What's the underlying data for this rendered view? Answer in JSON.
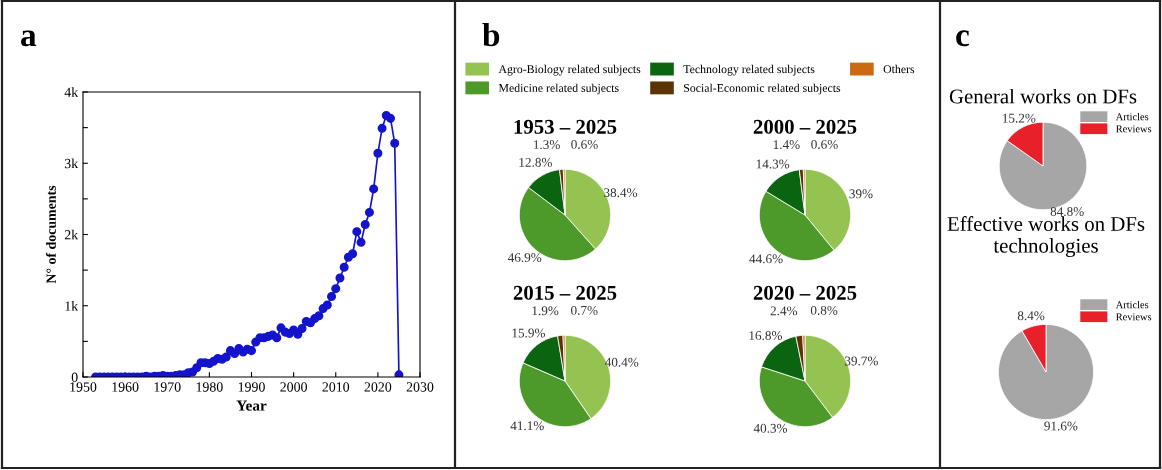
{
  "chart_data": [
    {
      "type": "line",
      "xlabel": "Year",
      "ylabel": "N° of documents",
      "annotations": [
        "a"
      ],
      "marker": "circle",
      "line_style": "solid",
      "grid": false,
      "xlim": [
        1950,
        2030
      ],
      "xticks": [
        1950,
        1960,
        1970,
        1980,
        1990,
        2000,
        2010,
        2020,
        2030
      ],
      "ylim": [
        0,
        4000
      ],
      "yticks": [
        {
          "value": 0,
          "label": "0"
        },
        {
          "value": 500,
          "label": null
        },
        {
          "value": 1000,
          "label": "1k"
        },
        {
          "value": 1500,
          "label": null
        },
        {
          "value": 2000,
          "label": "2k"
        },
        {
          "value": 2500,
          "label": null
        },
        {
          "value": 3000,
          "label": "3k"
        },
        {
          "value": 3500,
          "label": null
        },
        {
          "value": 4000,
          "label": "4k"
        }
      ],
      "x": [
        1953,
        1954,
        1955,
        1956,
        1957,
        1958,
        1959,
        1960,
        1961,
        1962,
        1963,
        1964,
        1965,
        1966,
        1967,
        1968,
        1969,
        1970,
        1971,
        1972,
        1973,
        1974,
        1975,
        1976,
        1977,
        1978,
        1979,
        1980,
        1981,
        1982,
        1983,
        1984,
        1985,
        1986,
        1987,
        1988,
        1989,
        1990,
        1991,
        1992,
        1993,
        1994,
        1995,
        1996,
        1997,
        1998,
        1999,
        2000,
        2001,
        2002,
        2003,
        2004,
        2005,
        2006,
        2007,
        2008,
        2009,
        2010,
        2011,
        2012,
        2013,
        2014,
        2015,
        2016,
        2017,
        2018,
        2019,
        2020,
        2021,
        2022,
        2023,
        2024,
        2025
      ],
      "series": [
        {
          "color": "#1414cc",
          "values": [
            0,
            0,
            0,
            0,
            0,
            0,
            0,
            0,
            0,
            0,
            0,
            0,
            10,
            0,
            10,
            10,
            20,
            10,
            10,
            20,
            30,
            30,
            60,
            70,
            130,
            200,
            200,
            190,
            220,
            260,
            250,
            280,
            370,
            330,
            400,
            350,
            390,
            370,
            490,
            550,
            550,
            570,
            590,
            550,
            690,
            630,
            610,
            660,
            600,
            680,
            780,
            760,
            820,
            860,
            960,
            1010,
            1130,
            1240,
            1390,
            1540,
            1680,
            1730,
            2040,
            1890,
            2140,
            2310,
            2640,
            3140,
            3490,
            3670,
            3630,
            3280,
            30
          ]
        }
      ]
    },
    {
      "type": "pie",
      "title": "1953 – 2025",
      "annotations": [
        "b"
      ],
      "legend": "top",
      "categories": [
        "Agro-Biology related subjects",
        "Medicine related subjects",
        "Technology related subjects",
        "Social-Economic related subjects",
        "Others"
      ],
      "values": [
        38.4,
        46.9,
        12.8,
        1.3,
        0.6
      ],
      "value_labels": [
        "38.4%",
        "46.9%",
        "12.8%",
        "1.3%",
        "0.6%"
      ],
      "colors": [
        "#94c352",
        "#4d9a2a",
        "#0b6410",
        "#5c3304",
        "#cc6a12"
      ]
    },
    {
      "type": "pie",
      "title": "2000 – 2025",
      "categories": [
        null,
        null,
        null,
        null,
        null
      ],
      "values": [
        39,
        44.6,
        14.3,
        1.4,
        0.6
      ],
      "value_labels": [
        "39%",
        "44.6%",
        "14.3%",
        "1.4%",
        "0.6%"
      ],
      "colors": [
        "#94c352",
        "#4d9a2a",
        "#0b6410",
        "#5c3304",
        "#cc6a12"
      ]
    },
    {
      "type": "pie",
      "title": "2015 – 2025",
      "categories": [
        null,
        null,
        null,
        null,
        null
      ],
      "values": [
        40.4,
        41.1,
        15.9,
        1.9,
        0.7
      ],
      "value_labels": [
        "40.4%",
        "41.1%",
        "15.9%",
        "1.9%",
        "0.7%"
      ],
      "colors": [
        "#94c352",
        "#4d9a2a",
        "#0b6410",
        "#5c3304",
        "#cc6a12"
      ]
    },
    {
      "type": "pie",
      "title": "2020 – 2025",
      "categories": [
        null,
        null,
        null,
        null,
        null
      ],
      "values": [
        39.7,
        40.3,
        16.8,
        2.4,
        0.8
      ],
      "value_labels": [
        "39.7%",
        "40.3%",
        "16.8%",
        "2.4%",
        "0.8%"
      ],
      "colors": [
        "#94c352",
        "#4d9a2a",
        "#0b6410",
        "#5c3304",
        "#cc6a12"
      ]
    },
    {
      "type": "pie",
      "title": "General works on DFs",
      "annotations": [
        "c"
      ],
      "legend": "top right",
      "categories": [
        "Articles",
        "Reviews"
      ],
      "values": [
        84.8,
        15.2
      ],
      "value_labels": [
        "84.8%",
        "15.2%"
      ],
      "colors": [
        "#a6a6a6",
        "#e8202a"
      ]
    },
    {
      "type": "pie",
      "title": "Effective works on DFs\ntechnologies",
      "legend": "top right",
      "categories": [
        "Articles",
        "Reviews"
      ],
      "values": [
        91.6,
        8.4
      ],
      "value_labels": [
        "91.6%",
        "8.4%"
      ],
      "colors": [
        "#a6a6a6",
        "#e8202a"
      ]
    }
  ]
}
